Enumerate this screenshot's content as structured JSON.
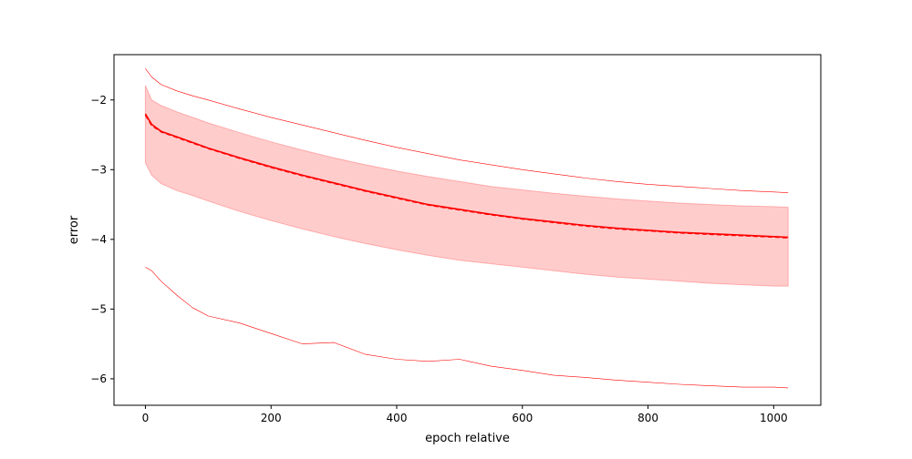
{
  "chart_data": {
    "type": "line",
    "title": "",
    "xlabel": "epoch relative",
    "ylabel": "error",
    "xlim": [
      -50,
      1075
    ],
    "ylim": [
      -6.38,
      -1.35
    ],
    "x_ticks": [
      0,
      200,
      400,
      600,
      800,
      1000
    ],
    "x_tick_labels": [
      "0",
      "200",
      "400",
      "600",
      "800",
      "1000"
    ],
    "y_ticks": [
      -2,
      -3,
      -4,
      -5,
      -6
    ],
    "y_tick_labels": [
      "−2",
      "−3",
      "−4",
      "−5",
      "−6"
    ],
    "grid": false,
    "colors": {
      "line": "#ff0000",
      "band_fill": "#ff0000",
      "band_opacity": 0.2
    },
    "x": [
      0,
      10,
      25,
      50,
      75,
      100,
      150,
      200,
      250,
      300,
      350,
      400,
      450,
      500,
      550,
      600,
      650,
      700,
      750,
      800,
      850,
      900,
      950,
      1000,
      1023
    ],
    "series": [
      {
        "role": "mean",
        "style": "solid",
        "values": [
          -2.2,
          -2.35,
          -2.45,
          -2.53,
          -2.61,
          -2.69,
          -2.83,
          -2.96,
          -3.08,
          -3.19,
          -3.3,
          -3.4,
          -3.5,
          -3.57,
          -3.64,
          -3.7,
          -3.75,
          -3.8,
          -3.84,
          -3.87,
          -3.9,
          -3.92,
          -3.94,
          -3.96,
          -3.97
        ]
      },
      {
        "role": "mean-dashed",
        "style": "dashed",
        "values": [
          -2.22,
          -2.37,
          -2.46,
          -2.54,
          -2.62,
          -2.7,
          -2.84,
          -2.97,
          -3.09,
          -3.2,
          -3.31,
          -3.41,
          -3.51,
          -3.58,
          -3.65,
          -3.71,
          -3.76,
          -3.81,
          -3.85,
          -3.88,
          -3.91,
          -3.93,
          -3.95,
          -3.97,
          -3.98
        ]
      },
      {
        "role": "band-upper",
        "style": "fill",
        "values": [
          -1.79,
          -2.0,
          -2.08,
          -2.17,
          -2.25,
          -2.33,
          -2.47,
          -2.6,
          -2.72,
          -2.83,
          -2.93,
          -3.02,
          -3.1,
          -3.17,
          -3.24,
          -3.29,
          -3.34,
          -3.38,
          -3.42,
          -3.45,
          -3.48,
          -3.5,
          -3.52,
          -3.53,
          -3.54
        ]
      },
      {
        "role": "band-lower",
        "style": "fill",
        "values": [
          -2.9,
          -3.08,
          -3.2,
          -3.3,
          -3.37,
          -3.45,
          -3.6,
          -3.73,
          -3.85,
          -3.96,
          -4.06,
          -4.15,
          -4.23,
          -4.3,
          -4.35,
          -4.4,
          -4.45,
          -4.5,
          -4.54,
          -4.57,
          -4.6,
          -4.63,
          -4.65,
          -4.67,
          -4.67
        ]
      },
      {
        "role": "max",
        "style": "thin",
        "values": [
          -1.55,
          -1.67,
          -1.78,
          -1.87,
          -1.94,
          -2.0,
          -2.13,
          -2.25,
          -2.36,
          -2.47,
          -2.58,
          -2.68,
          -2.77,
          -2.86,
          -2.93,
          -3.0,
          -3.06,
          -3.12,
          -3.17,
          -3.21,
          -3.24,
          -3.27,
          -3.3,
          -3.32,
          -3.33
        ]
      },
      {
        "role": "min",
        "style": "thin",
        "values": [
          -4.4,
          -4.45,
          -4.6,
          -4.8,
          -4.98,
          -5.1,
          -5.2,
          -5.35,
          -5.5,
          -5.48,
          -5.65,
          -5.72,
          -5.75,
          -5.72,
          -5.82,
          -5.88,
          -5.95,
          -5.98,
          -6.02,
          -6.05,
          -6.08,
          -6.1,
          -6.12,
          -6.12,
          -6.13
        ]
      }
    ]
  }
}
